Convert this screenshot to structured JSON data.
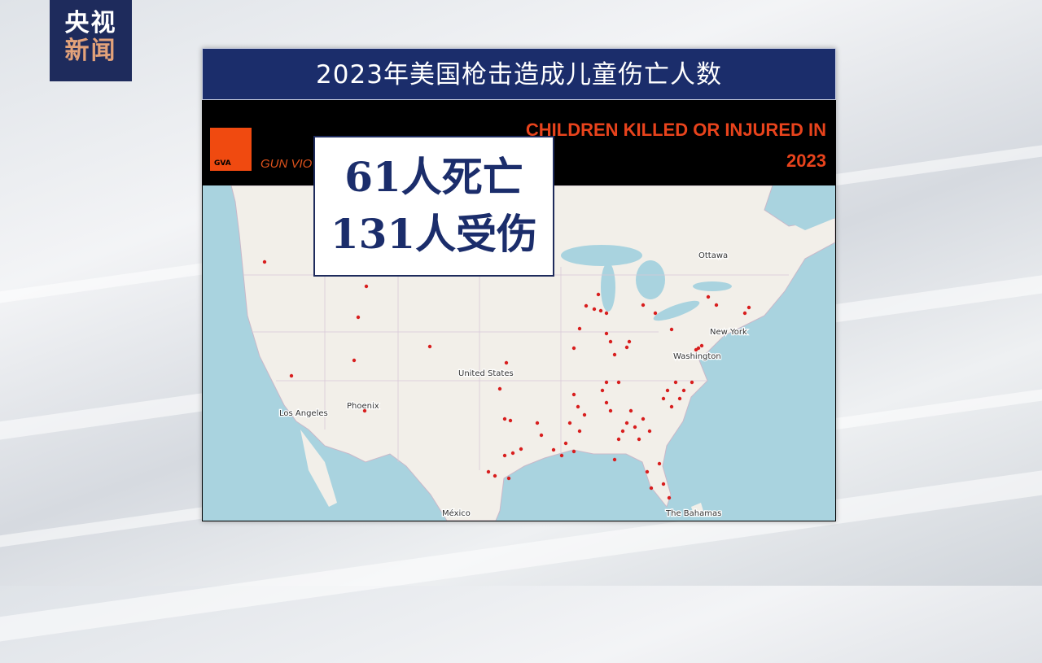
{
  "channel_logo": {
    "line1": "央视",
    "line2": "新闻"
  },
  "title": "2023年美国枪击造成儿童伤亡人数",
  "source_graphic": {
    "logo_text": "GVA",
    "org_text_visible": "GUN VIO",
    "heading_line1": "CHILDREN KILLED OR INJURED IN",
    "heading_line2": "2023",
    "accent_color": "#e8431c"
  },
  "map": {
    "labels": {
      "ottawa": "Ottawa",
      "new_york": "New York",
      "washington": "Washington",
      "united_states": "United States",
      "phoenix": "Phoenix",
      "los_angeles": "Los Angeles",
      "bahamas": "The Bahamas",
      "mexico": "México"
    },
    "marker_color": "#d81e1e",
    "water_color": "#a9d3df",
    "land_color": "#f2efe9"
  },
  "stats": {
    "killed": "61人死亡",
    "injured": "131人受伤"
  }
}
